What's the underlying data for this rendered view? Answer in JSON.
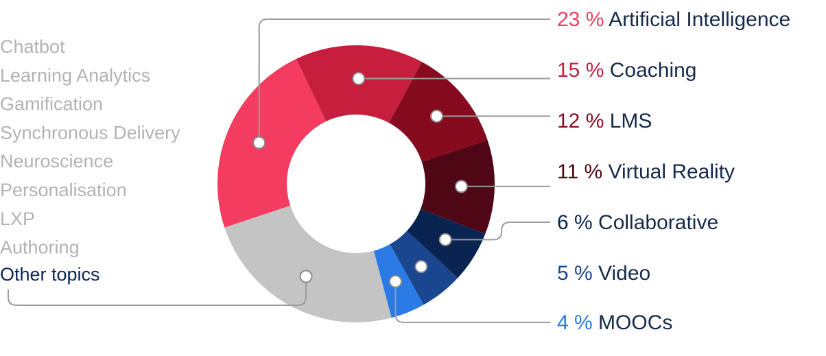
{
  "chart_data": {
    "type": "pie",
    "donut": true,
    "slices": [
      {
        "label": "Artificial Intelligence",
        "value": 23,
        "value_text": "23 %",
        "color": "#f43b60",
        "pct_color": "#f43b60"
      },
      {
        "label": "Coaching",
        "value": 15,
        "value_text": "15 %",
        "color": "#c71e3e",
        "pct_color": "#c71e3e"
      },
      {
        "label": "LMS",
        "value": 12,
        "value_text": "12 %",
        "color": "#860b1e",
        "pct_color": "#860b1e"
      },
      {
        "label": "Virtual Reality",
        "value": 11,
        "value_text": "11 %",
        "color": "#4f0615",
        "pct_color": "#4f0615"
      },
      {
        "label": "Collaborative",
        "value": 6,
        "value_text": "6 %",
        "color": "#0a2452",
        "pct_color": "#0a2452"
      },
      {
        "label": "Video",
        "value": 5,
        "value_text": "5 %",
        "color": "#19468f",
        "pct_color": "#19468f"
      },
      {
        "label": "MOOCs",
        "value": 4,
        "value_text": "4 %",
        "color": "#2a7be6",
        "pct_color": "#2a7be6"
      },
      {
        "label": "Other topics",
        "value": 24,
        "value_text": "",
        "color": "#c4c4c4",
        "pct_color": "#0a2452"
      }
    ],
    "other_topics": [
      "Chatbot",
      "Learning Analytics",
      "Gamification",
      "Synchronous Delivery",
      "Neuroscience",
      "Personalisation",
      "LXP",
      "Authoring"
    ],
    "other_label": "Other topics",
    "label_color": "#15294a",
    "other_topics_color": "#b3b3b3",
    "leader_color": "#9b9b9b"
  }
}
